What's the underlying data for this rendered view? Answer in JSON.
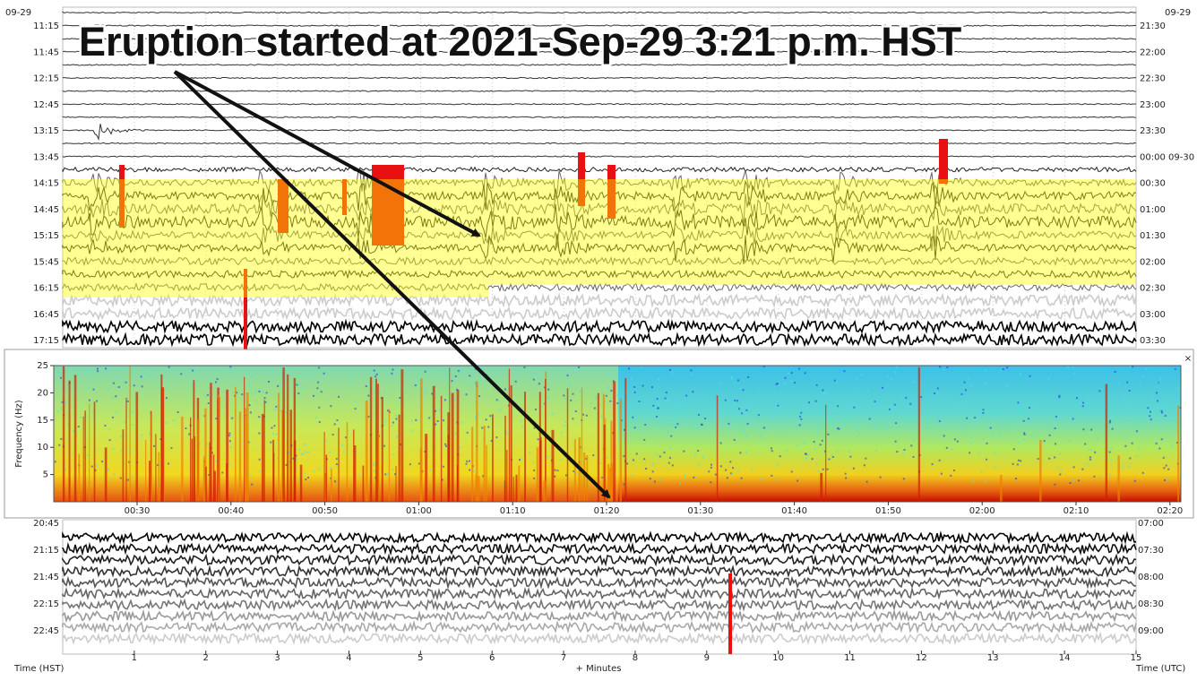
{
  "annotation": "Eruption started at 2021-Sep-29 3:21 p.m. HST",
  "helicorder_top": {
    "date_left": "09-29",
    "date_right": "09-29",
    "left_times": [
      "11:15",
      "11:45",
      "12:15",
      "12:45",
      "13:15",
      "13:45",
      "14:15",
      "14:45",
      "15:15",
      "15:45",
      "16:15",
      "16:45",
      "17:15"
    ],
    "right_times": [
      "21:30",
      "22:00",
      "22:30",
      "23:00",
      "23:30",
      "00:00 09-30",
      "00:30",
      "01:00",
      "01:30",
      "02:00",
      "02:30",
      "03:00",
      "03:30"
    ]
  },
  "spectrogram": {
    "close": "×",
    "y_label": "Frequency (Hz)",
    "ylim": [
      0,
      25
    ],
    "yticks": [
      5,
      10,
      15,
      20,
      25
    ],
    "x_labels": [
      "00:30",
      "00:40",
      "00:50",
      "01:00",
      "01:10",
      "01:20",
      "01:30",
      "01:40",
      "01:50",
      "02:00",
      "02:10",
      "02:20"
    ]
  },
  "helicorder_bottom": {
    "left_times": [
      "20:45",
      "21:15",
      "21:45",
      "22:15",
      "22:45"
    ],
    "right_times": [
      "07:00",
      "07:30",
      "08:00",
      "08:30",
      "09:00"
    ],
    "xlim": [
      0,
      15
    ],
    "xticks": [
      1,
      2,
      3,
      4,
      5,
      6,
      7,
      8,
      9,
      10,
      11,
      12,
      13,
      14,
      15
    ],
    "x_label_left": "Time (HST)",
    "x_label_center": "+ Minutes",
    "x_label_right": "Time (UTC)"
  }
}
